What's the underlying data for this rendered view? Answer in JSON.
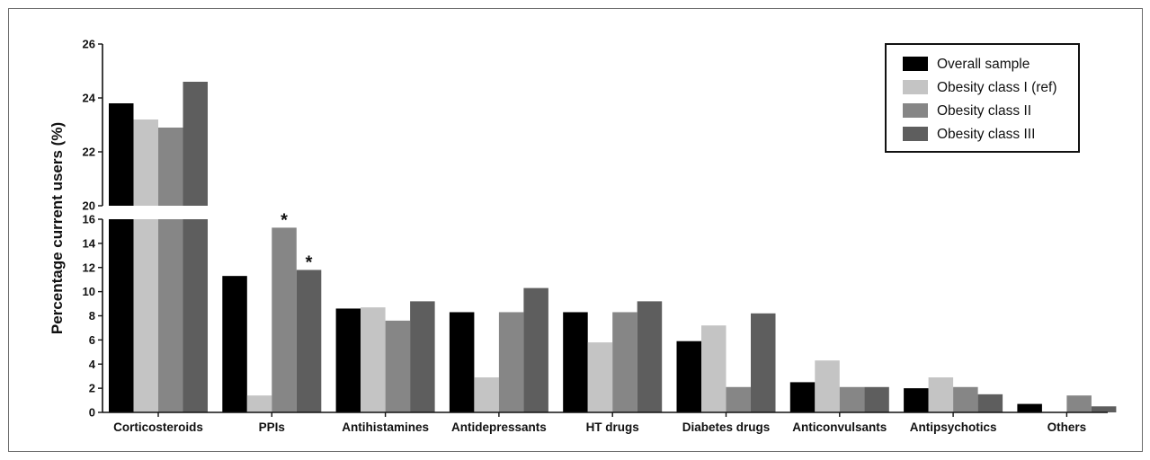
{
  "chart_data": {
    "type": "bar",
    "ylabel": "Percentage current users (%)",
    "axis_break": {
      "lower_range": [
        0,
        16
      ],
      "upper_range": [
        20,
        26
      ]
    },
    "lower_ticks": [
      "0",
      "2",
      "4",
      "6",
      "8",
      "10",
      "12",
      "14",
      "16"
    ],
    "upper_ticks": [
      "20",
      "22",
      "24",
      "26"
    ],
    "categories": [
      "Corticosteroids",
      "PPIs",
      "Antihistamines",
      "Antidepressants",
      "HT drugs",
      "Diabetes drugs",
      "Anticonvulsants",
      "Antipsychotics",
      "Others"
    ],
    "series": [
      {
        "name": "Overall sample",
        "color": "#000000",
        "values": [
          23.8,
          11.3,
          8.6,
          8.3,
          8.3,
          5.9,
          2.5,
          2.0,
          0.7
        ]
      },
      {
        "name": "Obesity class I (ref)",
        "color": "#c4c4c4",
        "values": [
          23.2,
          1.4,
          8.7,
          2.9,
          5.8,
          7.2,
          4.3,
          2.9,
          0.0
        ]
      },
      {
        "name": "Obesity class II",
        "color": "#868686",
        "values": [
          22.9,
          15.3,
          7.6,
          8.3,
          8.3,
          2.1,
          2.1,
          2.1,
          1.4
        ]
      },
      {
        "name": "Obesity class III",
        "color": "#5e5e5e",
        "values": [
          24.6,
          11.8,
          9.2,
          10.3,
          9.2,
          8.2,
          2.1,
          1.5,
          0.5
        ]
      }
    ],
    "annotations": [
      {
        "text": "*",
        "category": "PPIs",
        "series": "Obesity class II"
      },
      {
        "text": "*",
        "category": "PPIs",
        "series": "Obesity class III"
      }
    ],
    "legend_position": "top-right",
    "grid": false
  }
}
